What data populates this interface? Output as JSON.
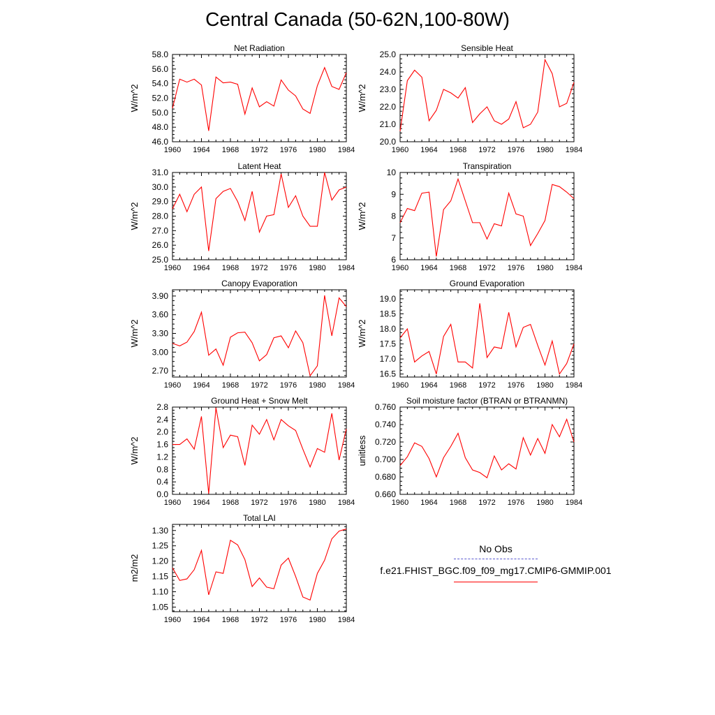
{
  "title": "Central Canada (50-62N,100-80W)",
  "legend": {
    "obs_label": "No Obs",
    "model_label": "f.e21.FHIST_BGC.f09_f09_mg17.CMIP6-GMMIP.001",
    "obs_color": "#5a5ad0",
    "model_color": "#ff0000"
  },
  "chart_data": [
    {
      "type": "line",
      "title": "Net Radiation",
      "ylabel": "W/m^2",
      "x": [
        1960,
        1961,
        1962,
        1963,
        1964,
        1965,
        1966,
        1967,
        1968,
        1969,
        1970,
        1971,
        1972,
        1973,
        1974,
        1975,
        1976,
        1977,
        1978,
        1979,
        1980,
        1981,
        1982,
        1983,
        1984
      ],
      "xlim": [
        1960,
        1984
      ],
      "xticks": [
        "1960",
        "1964",
        "1968",
        "1972",
        "1976",
        "1980",
        "1984"
      ],
      "ylim": [
        46,
        58
      ],
      "yticks": [
        "46.0",
        "48.0",
        "50.0",
        "52.0",
        "54.0",
        "56.0",
        "58.0"
      ],
      "series": [
        {
          "values": [
            50.6,
            54.6,
            54.2,
            54.6,
            53.8,
            47.5,
            54.9,
            54.1,
            54.2,
            53.9,
            49.8,
            53.4,
            50.8,
            51.5,
            50.9,
            54.5,
            53.1,
            52.3,
            50.5,
            49.9,
            53.7,
            56.2,
            53.6,
            53.2,
            55.5
          ]
        }
      ]
    },
    {
      "type": "line",
      "title": "Sensible Heat",
      "ylabel": "W/m^2",
      "x": [
        1960,
        1961,
        1962,
        1963,
        1964,
        1965,
        1966,
        1967,
        1968,
        1969,
        1970,
        1971,
        1972,
        1973,
        1974,
        1975,
        1976,
        1977,
        1978,
        1979,
        1980,
        1981,
        1982,
        1983,
        1984
      ],
      "xlim": [
        1960,
        1984
      ],
      "xticks": [
        "1960",
        "1964",
        "1968",
        "1972",
        "1976",
        "1980",
        "1984"
      ],
      "ylim": [
        20,
        25
      ],
      "yticks": [
        "20.0",
        "21.0",
        "22.0",
        "23.0",
        "24.0",
        "25.0"
      ],
      "series": [
        {
          "values": [
            20.6,
            23.5,
            24.1,
            23.7,
            21.2,
            21.8,
            23.0,
            22.8,
            22.5,
            23.1,
            21.1,
            21.6,
            22.0,
            21.2,
            21.0,
            21.3,
            22.3,
            20.8,
            21.0,
            21.7,
            24.7,
            23.9,
            22.0,
            22.2,
            23.4
          ]
        }
      ]
    },
    {
      "type": "line",
      "title": "Latent Heat",
      "ylabel": "W/m^2",
      "x": [
        1960,
        1961,
        1962,
        1963,
        1964,
        1965,
        1966,
        1967,
        1968,
        1969,
        1970,
        1971,
        1972,
        1973,
        1974,
        1975,
        1976,
        1977,
        1978,
        1979,
        1980,
        1981,
        1982,
        1983,
        1984
      ],
      "xlim": [
        1960,
        1984
      ],
      "xticks": [
        "1960",
        "1964",
        "1968",
        "1972",
        "1976",
        "1980",
        "1984"
      ],
      "ylim": [
        25,
        31
      ],
      "yticks": [
        "25.0",
        "26.0",
        "27.0",
        "28.0",
        "29.0",
        "30.0",
        "31.0"
      ],
      "series": [
        {
          "values": [
            28.5,
            29.5,
            28.3,
            29.5,
            30.0,
            25.6,
            29.2,
            29.7,
            29.9,
            29.0,
            27.7,
            29.7,
            26.9,
            28.0,
            28.1,
            30.9,
            28.6,
            29.4,
            28.0,
            27.3,
            27.3,
            31.0,
            29.1,
            29.8,
            30.0
          ]
        }
      ]
    },
    {
      "type": "line",
      "title": "Transpiration",
      "ylabel": "W/m^2",
      "x": [
        1960,
        1961,
        1962,
        1963,
        1964,
        1965,
        1966,
        1967,
        1968,
        1969,
        1970,
        1971,
        1972,
        1973,
        1974,
        1975,
        1976,
        1977,
        1978,
        1979,
        1980,
        1981,
        1982,
        1983,
        1984
      ],
      "xlim": [
        1960,
        1984
      ],
      "xticks": [
        "1960",
        "1964",
        "1968",
        "1972",
        "1976",
        "1980",
        "1984"
      ],
      "ylim": [
        6,
        10
      ],
      "yticks": [
        "6",
        "7",
        "8",
        "9",
        "10"
      ],
      "series": [
        {
          "values": [
            7.7,
            8.35,
            8.25,
            9.05,
            9.1,
            6.15,
            8.3,
            8.7,
            9.7,
            8.7,
            7.7,
            7.7,
            6.95,
            7.65,
            7.55,
            9.05,
            8.1,
            8.0,
            6.65,
            7.2,
            7.8,
            9.45,
            9.35,
            9.1,
            8.8
          ]
        }
      ]
    },
    {
      "type": "line",
      "title": "Canopy Evaporation",
      "ylabel": "W/m^2",
      "x": [
        1960,
        1961,
        1962,
        1963,
        1964,
        1965,
        1966,
        1967,
        1968,
        1969,
        1970,
        1971,
        1972,
        1973,
        1974,
        1975,
        1976,
        1977,
        1978,
        1979,
        1980,
        1981,
        1982,
        1983,
        1984
      ],
      "xlim": [
        1960,
        1984
      ],
      "xticks": [
        "1960",
        "1964",
        "1968",
        "1972",
        "1976",
        "1980",
        "1984"
      ],
      "ylim": [
        2.6,
        4.0
      ],
      "yticks": [
        "2.70",
        "3.00",
        "3.30",
        "3.60",
        "3.90"
      ],
      "series": [
        {
          "values": [
            3.14,
            3.1,
            3.16,
            3.33,
            3.64,
            2.95,
            3.05,
            2.79,
            3.24,
            3.31,
            3.32,
            3.15,
            2.86,
            2.96,
            3.23,
            3.26,
            3.07,
            3.34,
            3.15,
            2.62,
            2.78,
            3.91,
            3.26,
            3.87,
            3.73
          ]
        }
      ]
    },
    {
      "type": "line",
      "title": "Ground Evaporation",
      "ylabel": "W/m^2",
      "x": [
        1960,
        1961,
        1962,
        1963,
        1964,
        1965,
        1966,
        1967,
        1968,
        1969,
        1970,
        1971,
        1972,
        1973,
        1974,
        1975,
        1976,
        1977,
        1978,
        1979,
        1980,
        1981,
        1982,
        1983,
        1984
      ],
      "xlim": [
        1960,
        1984
      ],
      "xticks": [
        "1960",
        "1964",
        "1968",
        "1972",
        "1976",
        "1980",
        "1984"
      ],
      "ylim": [
        16.4,
        19.3
      ],
      "yticks": [
        "16.5",
        "17.0",
        "17.5",
        "18.0",
        "18.5",
        "19.0"
      ],
      "series": [
        {
          "values": [
            17.7,
            18.0,
            16.9,
            17.1,
            17.25,
            16.5,
            17.75,
            18.15,
            16.9,
            16.9,
            16.7,
            18.85,
            17.05,
            17.4,
            17.35,
            18.55,
            17.4,
            18.05,
            18.15,
            17.45,
            16.8,
            17.6,
            16.5,
            16.85,
            17.5
          ]
        }
      ]
    },
    {
      "type": "line",
      "title": "Ground Heat + Snow Melt",
      "ylabel": "W/m^2",
      "x": [
        1960,
        1961,
        1962,
        1963,
        1964,
        1965,
        1966,
        1967,
        1968,
        1969,
        1970,
        1971,
        1972,
        1973,
        1974,
        1975,
        1976,
        1977,
        1978,
        1979,
        1980,
        1981,
        1982,
        1983,
        1984
      ],
      "xlim": [
        1960,
        1984
      ],
      "xticks": [
        "1960",
        "1964",
        "1968",
        "1972",
        "1976",
        "1980",
        "1984"
      ],
      "ylim": [
        0,
        2.8
      ],
      "yticks": [
        "0.0",
        "0.4",
        "0.8",
        "1.2",
        "1.6",
        "2.0",
        "2.4",
        "2.8"
      ],
      "series": [
        {
          "values": [
            1.6,
            1.6,
            1.78,
            1.45,
            2.5,
            0.02,
            2.78,
            1.5,
            1.9,
            1.85,
            0.93,
            2.22,
            1.93,
            2.4,
            1.75,
            2.4,
            2.2,
            2.05,
            1.45,
            0.88,
            1.47,
            1.35,
            2.6,
            1.1,
            2.1
          ]
        }
      ]
    },
    {
      "type": "line",
      "title": "Soil moisture factor (BTRAN or BTRANMN)",
      "ylabel": "unitless",
      "x": [
        1960,
        1961,
        1962,
        1963,
        1964,
        1965,
        1966,
        1967,
        1968,
        1969,
        1970,
        1971,
        1972,
        1973,
        1974,
        1975,
        1976,
        1977,
        1978,
        1979,
        1980,
        1981,
        1982,
        1983,
        1984
      ],
      "xlim": [
        1960,
        1984
      ],
      "xticks": [
        "1960",
        "1964",
        "1968",
        "1972",
        "1976",
        "1980",
        "1984"
      ],
      "ylim": [
        0.66,
        0.76
      ],
      "yticks": [
        "0.660",
        "0.680",
        "0.700",
        "0.720",
        "0.740",
        "0.760"
      ],
      "series": [
        {
          "values": [
            0.693,
            0.703,
            0.719,
            0.715,
            0.701,
            0.68,
            0.702,
            0.715,
            0.73,
            0.702,
            0.688,
            0.685,
            0.679,
            0.704,
            0.688,
            0.695,
            0.689,
            0.725,
            0.705,
            0.724,
            0.707,
            0.74,
            0.726,
            0.746,
            0.72
          ]
        }
      ]
    },
    {
      "type": "line",
      "title": "Total LAI",
      "ylabel": "m2/m2",
      "x": [
        1960,
        1961,
        1962,
        1963,
        1964,
        1965,
        1966,
        1967,
        1968,
        1969,
        1970,
        1971,
        1972,
        1973,
        1974,
        1975,
        1976,
        1977,
        1978,
        1979,
        1980,
        1981,
        1982,
        1983,
        1984
      ],
      "xlim": [
        1960,
        1984
      ],
      "xticks": [
        "1960",
        "1964",
        "1968",
        "1972",
        "1976",
        "1980",
        "1984"
      ],
      "ylim": [
        1.035,
        1.32
      ],
      "yticks": [
        "1.05",
        "1.10",
        "1.15",
        "1.20",
        "1.25",
        "1.30"
      ],
      "series": [
        {
          "values": [
            1.178,
            1.137,
            1.142,
            1.172,
            1.235,
            1.09,
            1.165,
            1.16,
            1.268,
            1.253,
            1.205,
            1.117,
            1.145,
            1.115,
            1.11,
            1.187,
            1.21,
            1.15,
            1.083,
            1.073,
            1.16,
            1.203,
            1.273,
            1.298,
            1.305
          ]
        }
      ]
    }
  ]
}
